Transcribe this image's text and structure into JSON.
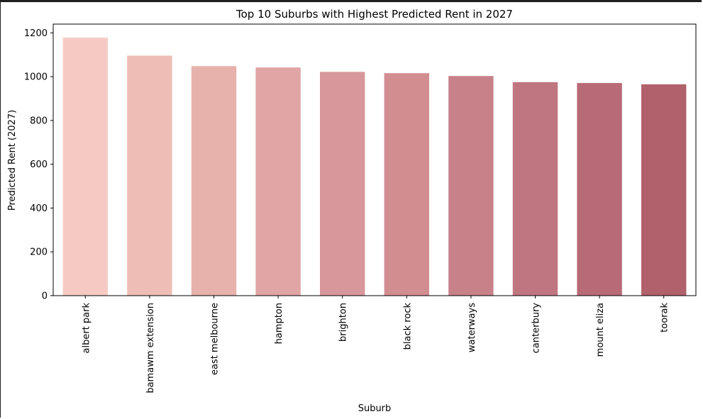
{
  "chart_data": {
    "type": "bar",
    "title": "Top 10 Suburbs with Highest Predicted Rent in 2027",
    "xlabel": "Suburb",
    "ylabel": "Predicted Rent (2027)",
    "categories": [
      "albert park",
      "bamawm extension",
      "east melbourne",
      "hampton",
      "brighton",
      "black rock",
      "waterways",
      "canterbury",
      "mount eliza",
      "toorak"
    ],
    "values": [
      1178,
      1096,
      1048,
      1042,
      1022,
      1016,
      1003,
      975,
      971,
      965
    ],
    "ylim": [
      0,
      1240
    ],
    "yticks": [
      0,
      200,
      400,
      600,
      800,
      1000,
      1200
    ],
    "colors": [
      "#f6cac3",
      "#eebeb6",
      "#e7b1ac",
      "#e0a5a4",
      "#d8989b",
      "#d28d91",
      "#c98189",
      "#c07680",
      "#b96a77",
      "#b0616b"
    ],
    "grid": false,
    "legend": false
  }
}
